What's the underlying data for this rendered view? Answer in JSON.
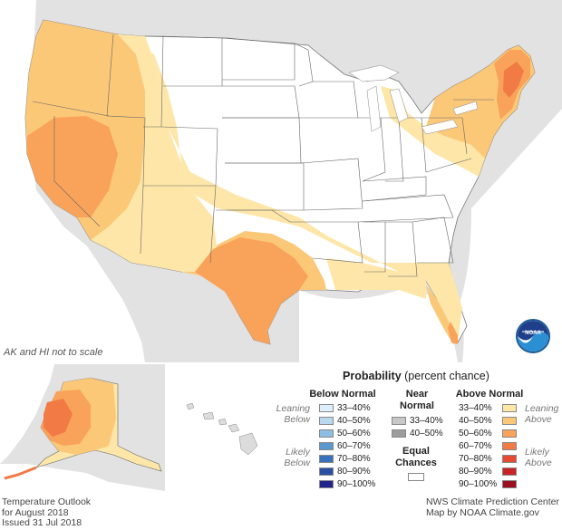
{
  "map": {
    "scale_note": "AK and HI not to scale",
    "title_lines": [
      "Temperature Outlook",
      "for August 2018",
      "Issued 31 Jul 2018"
    ],
    "credit_lines": [
      "NWS Climate Prediction Center",
      "Map by NOAA Climate.gov"
    ]
  },
  "legend": {
    "title": "Probability",
    "subtitle": "(percent chance)",
    "below": {
      "heading": "Below Normal",
      "leaning_label": [
        "Leaning",
        "Below"
      ],
      "likely_label": [
        "Likely",
        "Below"
      ],
      "items": [
        {
          "label": "33–40%",
          "color": "#deeefa"
        },
        {
          "label": "40–50%",
          "color": "#b8d9ef"
        },
        {
          "label": "50–60%",
          "color": "#8cbde3"
        },
        {
          "label": "60–70%",
          "color": "#5b99d0"
        },
        {
          "label": "70–80%",
          "color": "#3a71bb"
        },
        {
          "label": "80–90%",
          "color": "#2b4fa2"
        },
        {
          "label": "90–100%",
          "color": "#22238a"
        }
      ]
    },
    "near": {
      "heading": [
        "Near",
        "Normal"
      ],
      "items": [
        {
          "label": "33–40%",
          "color": "#c7c7c7"
        },
        {
          "label": "40–50%",
          "color": "#9d9d9d"
        }
      ]
    },
    "equal": {
      "heading": [
        "Equal",
        "Chances"
      ],
      "color": "#ffffff"
    },
    "above": {
      "heading": "Above Normal",
      "leaning_label": [
        "Leaning",
        "Above"
      ],
      "likely_label": [
        "Likely",
        "Above"
      ],
      "items": [
        {
          "label": "33–40%",
          "color": "#fde6a8"
        },
        {
          "label": "40–50%",
          "color": "#fbc878"
        },
        {
          "label": "50–60%",
          "color": "#f9a35a"
        },
        {
          "label": "60–70%",
          "color": "#f17a45"
        },
        {
          "label": "70–80%",
          "color": "#e44b32"
        },
        {
          "label": "80–90%",
          "color": "#c92328"
        },
        {
          "label": "90–100%",
          "color": "#9c0f21"
        }
      ]
    }
  },
  "colors": {
    "background_land": "#dcdcdc",
    "water": "#ffffff",
    "equal_chances": "#ffffff",
    "state_lines": "#555555"
  }
}
